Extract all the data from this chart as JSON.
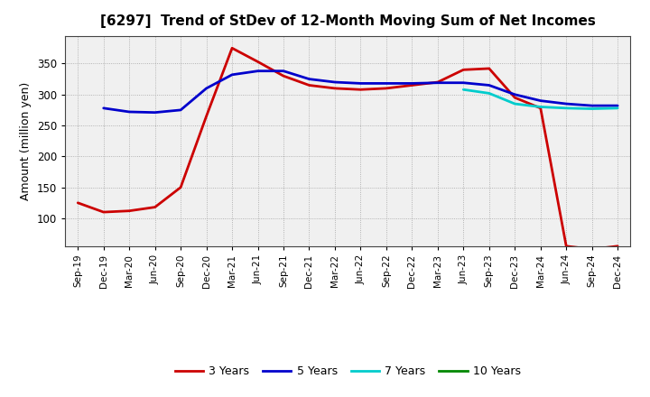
{
  "title": "[6297]  Trend of StDev of 12-Month Moving Sum of Net Incomes",
  "ylabel": "Amount (million yen)",
  "background_color": "#ffffff",
  "plot_bg_color": "#f0f0f0",
  "grid_color": "#999999",
  "ylim": [
    55,
    395
  ],
  "yticks": [
    100,
    150,
    200,
    250,
    300,
    350
  ],
  "x_labels": [
    "Sep-19",
    "Dec-19",
    "Mar-20",
    "Jun-20",
    "Sep-20",
    "Dec-20",
    "Mar-21",
    "Jun-21",
    "Sep-21",
    "Dec-21",
    "Mar-22",
    "Jun-22",
    "Sep-22",
    "Dec-22",
    "Mar-23",
    "Jun-23",
    "Sep-23",
    "Dec-23",
    "Mar-24",
    "Jun-24",
    "Sep-24",
    "Dec-24"
  ],
  "series": {
    "3 Years": {
      "color": "#cc0000",
      "linewidth": 2.0,
      "values": [
        125,
        110,
        112,
        118,
        150,
        265,
        375,
        353,
        330,
        315,
        310,
        308,
        310,
        315,
        320,
        340,
        342,
        295,
        278,
        55,
        50,
        55
      ]
    },
    "5 Years": {
      "color": "#0000cc",
      "linewidth": 2.0,
      "values": [
        null,
        278,
        272,
        271,
        275,
        310,
        332,
        338,
        338,
        325,
        320,
        318,
        318,
        318,
        319,
        319,
        315,
        300,
        290,
        285,
        282,
        282
      ]
    },
    "7 Years": {
      "color": "#00cccc",
      "linewidth": 2.0,
      "values": [
        null,
        null,
        null,
        null,
        null,
        null,
        null,
        null,
        null,
        null,
        null,
        null,
        null,
        null,
        null,
        308,
        302,
        285,
        280,
        278,
        277,
        278
      ]
    },
    "10 Years": {
      "color": "#008800",
      "linewidth": 2.0,
      "values": [
        null,
        null,
        null,
        null,
        null,
        null,
        null,
        null,
        null,
        null,
        null,
        null,
        null,
        null,
        null,
        null,
        null,
        null,
        null,
        null,
        null,
        null
      ]
    }
  },
  "legend": {
    "labels": [
      "3 Years",
      "5 Years",
      "7 Years",
      "10 Years"
    ],
    "colors": [
      "#cc0000",
      "#0000cc",
      "#00cccc",
      "#008800"
    ],
    "ncol": 4
  }
}
